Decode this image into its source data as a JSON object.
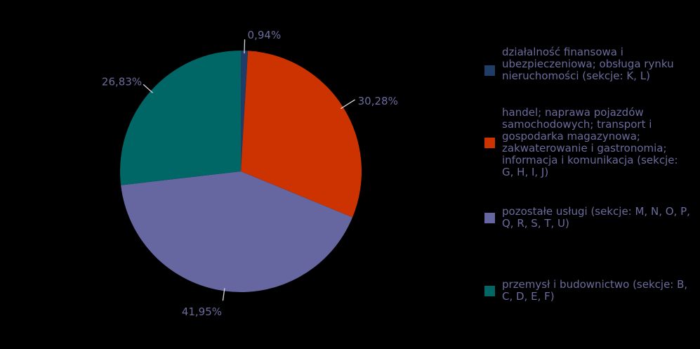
{
  "chart_data": {
    "type": "pie",
    "categories": [
      "działalność finansowa i ubezpieczeniowa; obsługa rynku nieruchomości (sekcje: K, L)",
      "handel; naprawa pojazdów samochodowych; transport i gospodarka magazynowa; zakwaterowanie i gastronomia; informacja i komunikacja (sekcje: G, H, I, J)",
      "pozostałe usługi (sekcje: M, N, O, P, Q, R, S, T, U)",
      "przemysł i budownictwo (sekcje: B, C, D, E, F)"
    ],
    "values": [
      0.94,
      30.28,
      41.95,
      26.83
    ],
    "data_labels": [
      "0,94%",
      "30,28%",
      "41,95%",
      "26,83%"
    ],
    "colors": [
      "#1f3d66",
      "#cc3300",
      "#6666a0",
      "#006666"
    ],
    "label_color": "#6b6b9c",
    "legend_position": "right",
    "start_angle": "top, clockwise",
    "title": ""
  }
}
